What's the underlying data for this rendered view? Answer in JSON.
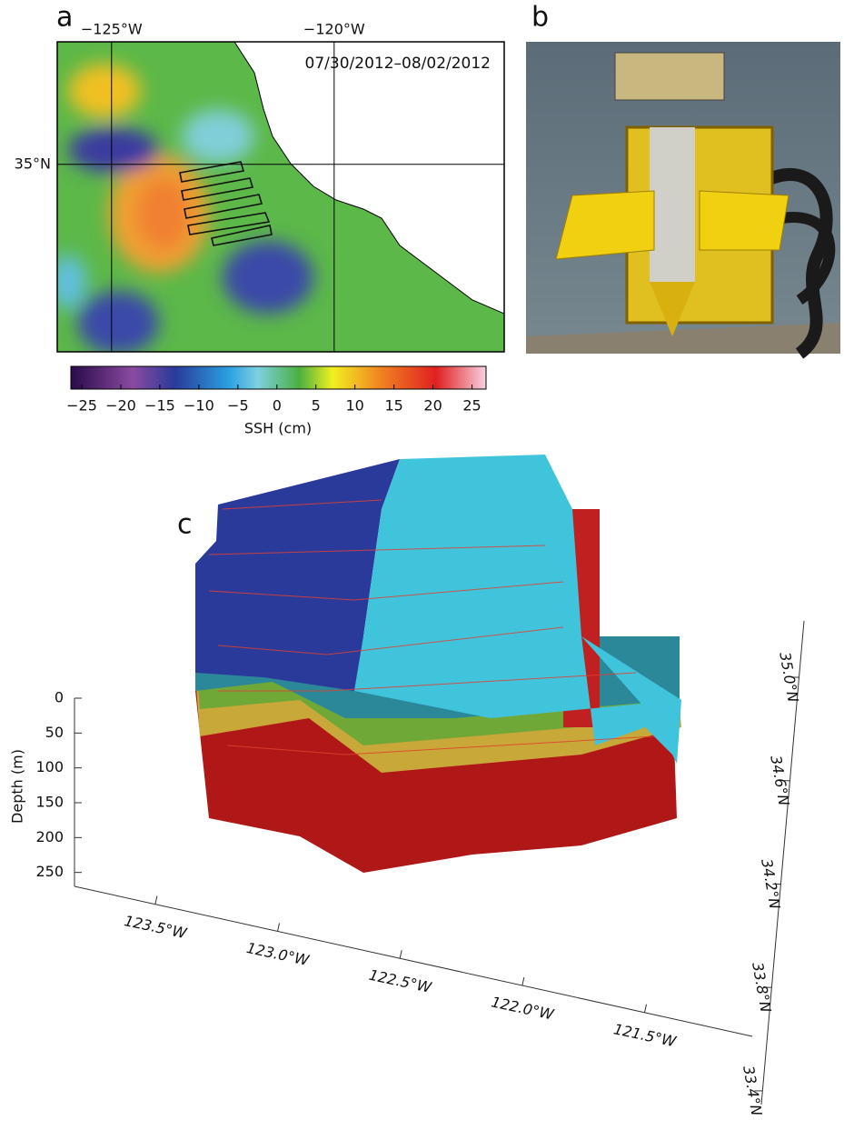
{
  "panel_a": {
    "label": "a",
    "date": "07/30/2012–08/02/2012",
    "lonlim": [
      -126.22,
      -116.18
    ],
    "latlim": [
      31.25,
      37.45
    ],
    "lon_ticks": [
      {
        "value": -125,
        "label": "−125°W"
      },
      {
        "value": -120,
        "label": "−120°W"
      }
    ],
    "lat_ticks": [
      {
        "value": 35,
        "label": "35°N"
      }
    ]
  },
  "colorbar": {
    "label": "SSH (cm)",
    "lim": [
      -26.4,
      26.8
    ],
    "ticks": [
      {
        "value": -25,
        "label": "−25"
      },
      {
        "value": -20,
        "label": "−20"
      },
      {
        "value": -15,
        "label": "−15"
      },
      {
        "value": -10,
        "label": "−10"
      },
      {
        "value": -5,
        "label": "−5"
      },
      0,
      5,
      10,
      15,
      20,
      25
    ]
  },
  "panel_b": {
    "label": "b"
  },
  "panel_c": {
    "label": "c",
    "depth_label": "Depth (m)",
    "depthlim": [
      0,
      270
    ],
    "depth_ticks": [
      0,
      50,
      100,
      150,
      200,
      250
    ],
    "lonlim": [
      -123.83,
      -121.06
    ],
    "lon_ticks": [
      {
        "value": -123.5,
        "label": "123.5°W"
      },
      {
        "value": -123.0,
        "label": "123.0°W"
      },
      {
        "value": -122.5,
        "label": "122.5°W"
      },
      {
        "value": -122.0,
        "label": "122.0°W"
      },
      {
        "value": -121.5,
        "label": "121.5°W"
      }
    ],
    "latlim": [
      33.347,
      35.218
    ],
    "lat_ticks": [
      {
        "value": 33.4,
        "label": "33.4°N"
      },
      {
        "value": 33.8,
        "label": "33.8°N"
      },
      {
        "value": 34.2,
        "label": "34.2°N"
      },
      {
        "value": 34.6,
        "label": "34.6°N"
      },
      {
        "value": 35.0,
        "label": "35.0°N"
      }
    ]
  }
}
